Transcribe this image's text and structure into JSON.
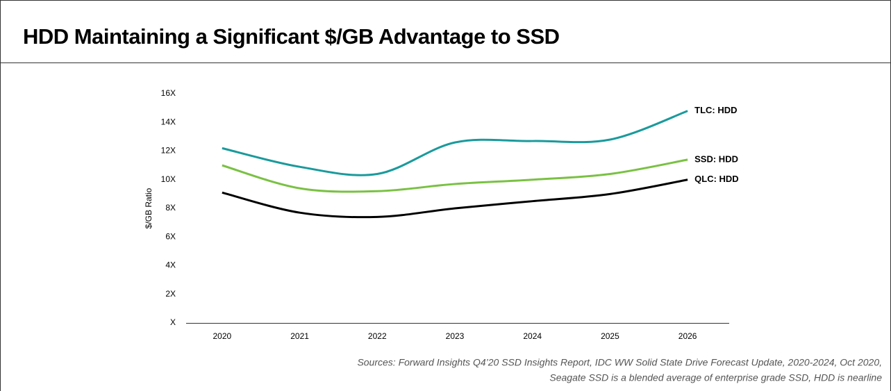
{
  "chart_data": {
    "type": "line",
    "title": "HDD Maintaining a Significant $/GB Advantage to SSD",
    "y_label": "$/GB Ratio",
    "categories": [
      "2020",
      "2021",
      "2022",
      "2023",
      "2024",
      "2025",
      "2026"
    ],
    "series": [
      {
        "name": "TLC: HDD",
        "color": "#1a9a9c",
        "values": [
          12.2,
          10.9,
          10.4,
          12.6,
          12.7,
          12.8,
          14.8
        ]
      },
      {
        "name": "SSD: HDD",
        "color": "#7ac143",
        "values": [
          11.0,
          9.4,
          9.2,
          9.7,
          10.0,
          10.4,
          11.4
        ]
      },
      {
        "name": "QLC: HDD",
        "color": "#000000",
        "values": [
          9.1,
          7.7,
          7.4,
          8.0,
          8.5,
          9.0,
          10.0
        ]
      }
    ],
    "ylim": [
      0,
      16
    ],
    "yticks": [
      {
        "value": 0,
        "label": "X"
      },
      {
        "value": 2,
        "label": "2X"
      },
      {
        "value": 4,
        "label": "4X"
      },
      {
        "value": 6,
        "label": "6X"
      },
      {
        "value": 8,
        "label": "8X"
      },
      {
        "value": 10,
        "label": "10X"
      },
      {
        "value": 12,
        "label": "12X"
      },
      {
        "value": 14,
        "label": "14X"
      },
      {
        "value": 16,
        "label": "16X"
      }
    ],
    "notes": [
      "Sources: Forward Insights Q4’20 SSD Insights Report, IDC WW Solid State Drive Forecast Update, 2020-2024, Oct 2020,",
      "Seagate SSD is a blended average of enterprise grade SSD, HDD is nearline"
    ]
  }
}
